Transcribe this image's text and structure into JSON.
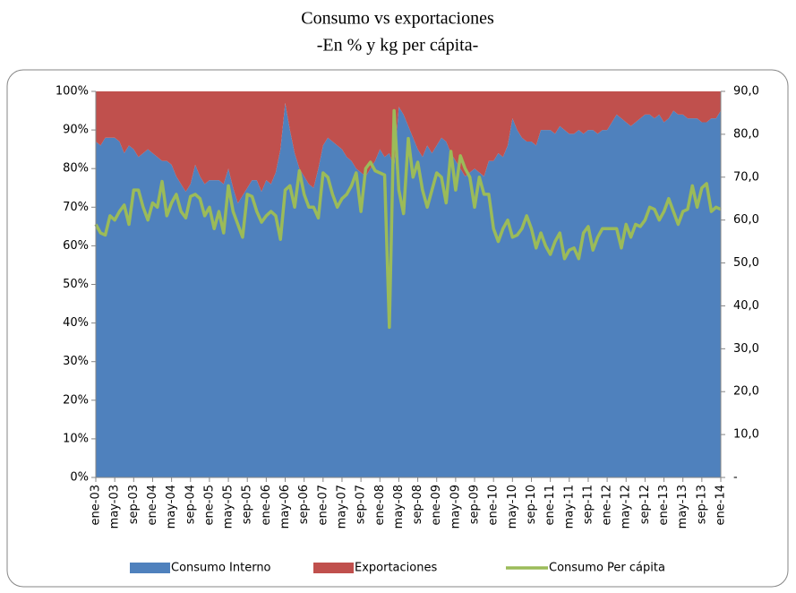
{
  "chart_data": {
    "type": "stacked-area-line",
    "title": "Consumo vs exportaciones",
    "subtitle": "-En % y kg per cápita-",
    "categories": [
      "ene-03",
      null,
      null,
      null,
      "may-03",
      null,
      null,
      null,
      "sep-03",
      null,
      null,
      null,
      "ene-04",
      null,
      null,
      null,
      "may-04",
      null,
      null,
      null,
      "sep-04",
      null,
      null,
      null,
      "ene-05",
      null,
      null,
      null,
      "may-05",
      null,
      null,
      null,
      "sep-05",
      null,
      null,
      null,
      "ene-06",
      null,
      null,
      null,
      "may-06",
      null,
      null,
      null,
      "sep-06",
      null,
      null,
      null,
      "ene-07",
      null,
      null,
      null,
      "may-07",
      null,
      null,
      null,
      "sep-07",
      null,
      null,
      null,
      "ene-08",
      null,
      null,
      null,
      "may-08",
      null,
      null,
      null,
      "sep-08",
      null,
      null,
      null,
      "ene-09",
      null,
      null,
      null,
      "may-09",
      null,
      null,
      null,
      "sep-09",
      null,
      null,
      null,
      "ene-10",
      null,
      null,
      null,
      "may-10",
      null,
      null,
      null,
      "sep-10",
      null,
      null,
      null,
      "ene-11",
      null,
      null,
      null,
      "may-11",
      null,
      null,
      null,
      "sep-11",
      null,
      null,
      null,
      "ene-12",
      null,
      null,
      null,
      "may-12",
      null,
      null,
      null,
      "sep-12",
      null,
      null,
      null,
      "ene-13",
      null,
      null,
      null,
      "may-13",
      null,
      null,
      null,
      "sep-13",
      null,
      null,
      null,
      "ene-14"
    ],
    "series": [
      {
        "name": "Consumo Interno",
        "color": "#4f81bd",
        "kind": "area",
        "values": [
          87,
          86,
          88,
          88,
          88,
          87,
          84,
          86,
          85,
          83,
          84,
          85,
          84,
          83,
          82,
          82,
          81,
          78,
          76,
          74,
          76,
          81,
          78,
          76,
          77,
          77,
          77,
          76,
          80,
          75,
          71,
          73,
          75,
          77,
          77,
          74,
          77,
          76,
          79,
          85,
          97,
          90,
          84,
          80,
          78,
          76,
          75,
          80,
          86,
          88,
          87,
          86,
          85,
          83,
          82,
          80,
          79,
          78,
          80,
          82,
          85,
          83,
          84,
          80,
          96,
          94,
          91,
          88,
          85,
          83,
          86,
          84,
          86,
          88,
          87,
          84,
          82,
          80,
          78,
          79,
          80,
          79,
          78,
          82,
          82,
          84,
          83,
          86,
          93,
          90,
          88,
          87,
          87,
          86,
          90,
          90,
          90,
          89,
          91,
          90,
          89,
          89,
          90,
          89,
          90,
          90,
          89,
          90,
          90,
          92,
          94,
          93,
          92,
          91,
          92,
          93,
          94,
          94,
          93,
          94,
          92,
          93,
          95,
          94,
          94,
          93,
          93,
          93,
          92,
          92,
          93,
          93,
          95
        ]
      },
      {
        "name": "Exportaciones",
        "color": "#c0504d",
        "kind": "area",
        "values": [
          13,
          14,
          12,
          12,
          12,
          13,
          16,
          14,
          15,
          17,
          16,
          15,
          16,
          17,
          18,
          18,
          19,
          22,
          24,
          26,
          24,
          19,
          22,
          24,
          23,
          23,
          23,
          24,
          20,
          25,
          29,
          27,
          25,
          23,
          23,
          26,
          23,
          24,
          21,
          15,
          3,
          10,
          16,
          20,
          22,
          24,
          25,
          20,
          14,
          12,
          13,
          14,
          15,
          17,
          18,
          20,
          21,
          22,
          20,
          18,
          15,
          17,
          16,
          20,
          4,
          6,
          9,
          12,
          15,
          17,
          14,
          16,
          14,
          12,
          13,
          16,
          18,
          20,
          22,
          21,
          20,
          21,
          22,
          18,
          18,
          16,
          17,
          14,
          7,
          10,
          12,
          13,
          13,
          14,
          10,
          10,
          10,
          11,
          9,
          10,
          11,
          11,
          10,
          11,
          10,
          10,
          11,
          10,
          10,
          8,
          6,
          7,
          8,
          9,
          8,
          7,
          6,
          6,
          7,
          6,
          8,
          7,
          5,
          6,
          6,
          7,
          7,
          7,
          8,
          8,
          7,
          7,
          5
        ]
      },
      {
        "name": "Consumo Per cápita",
        "color": "#9bbb59",
        "kind": "line",
        "axis": "y2",
        "values": [
          59,
          57,
          56.5,
          61,
          60,
          62,
          63.5,
          59,
          67,
          67,
          63,
          60,
          64,
          63,
          69,
          61,
          64,
          66,
          62,
          60.5,
          65.5,
          66,
          65,
          61,
          63,
          58,
          62,
          57,
          68,
          62,
          59,
          56,
          66,
          65.5,
          62,
          59.5,
          61,
          62,
          61,
          55.5,
          67,
          68,
          63,
          71.5,
          66,
          63,
          63,
          60.5,
          71,
          70,
          66,
          63,
          65,
          66,
          68,
          71,
          62,
          72,
          73.5,
          71.5,
          71,
          70.5,
          35,
          85.5,
          67,
          61.5,
          79,
          70,
          73.5,
          67,
          63,
          67,
          71,
          70,
          64,
          76,
          67,
          75,
          72,
          70,
          63,
          70,
          66,
          66,
          58,
          55,
          58,
          60,
          56,
          56.5,
          58,
          61,
          58,
          53.5,
          57,
          54,
          52,
          55,
          57,
          51,
          53,
          53.5,
          51,
          57,
          58.5,
          53,
          56,
          58,
          58,
          58,
          58,
          53.5,
          59,
          56,
          59,
          58.5,
          60,
          63,
          62.5,
          60,
          62,
          65,
          62,
          59,
          62,
          62.5,
          68,
          63,
          67.5,
          68.5,
          62,
          63,
          62.5
        ]
      }
    ],
    "ylim": [
      0,
      100
    ],
    "yticks": [
      {
        "value": 0,
        "label": "0%"
      },
      {
        "value": 10,
        "label": "10%"
      },
      {
        "value": 20,
        "label": "20%"
      },
      {
        "value": 30,
        "label": "30%"
      },
      {
        "value": 40,
        "label": "40%"
      },
      {
        "value": 50,
        "label": "50%"
      },
      {
        "value": 60,
        "label": "60%"
      },
      {
        "value": 70,
        "label": "70%"
      },
      {
        "value": 80,
        "label": "80%"
      },
      {
        "value": 90,
        "label": "90%"
      },
      {
        "value": 100,
        "label": "100%"
      }
    ],
    "y2lim": [
      0,
      90
    ],
    "y2ticks": [
      {
        "value": 0,
        "label": "-"
      },
      {
        "value": 10,
        "label": "10,0"
      },
      {
        "value": 20,
        "label": "20,0"
      },
      {
        "value": 30,
        "label": "30,0"
      },
      {
        "value": 40,
        "label": "40,0"
      },
      {
        "value": 50,
        "label": "50,0"
      },
      {
        "value": 60,
        "label": "60,0"
      },
      {
        "value": 70,
        "label": "70,0"
      },
      {
        "value": 80,
        "label": "80,0"
      },
      {
        "value": 90,
        "label": "90,0"
      }
    ],
    "legend": "bottom"
  }
}
